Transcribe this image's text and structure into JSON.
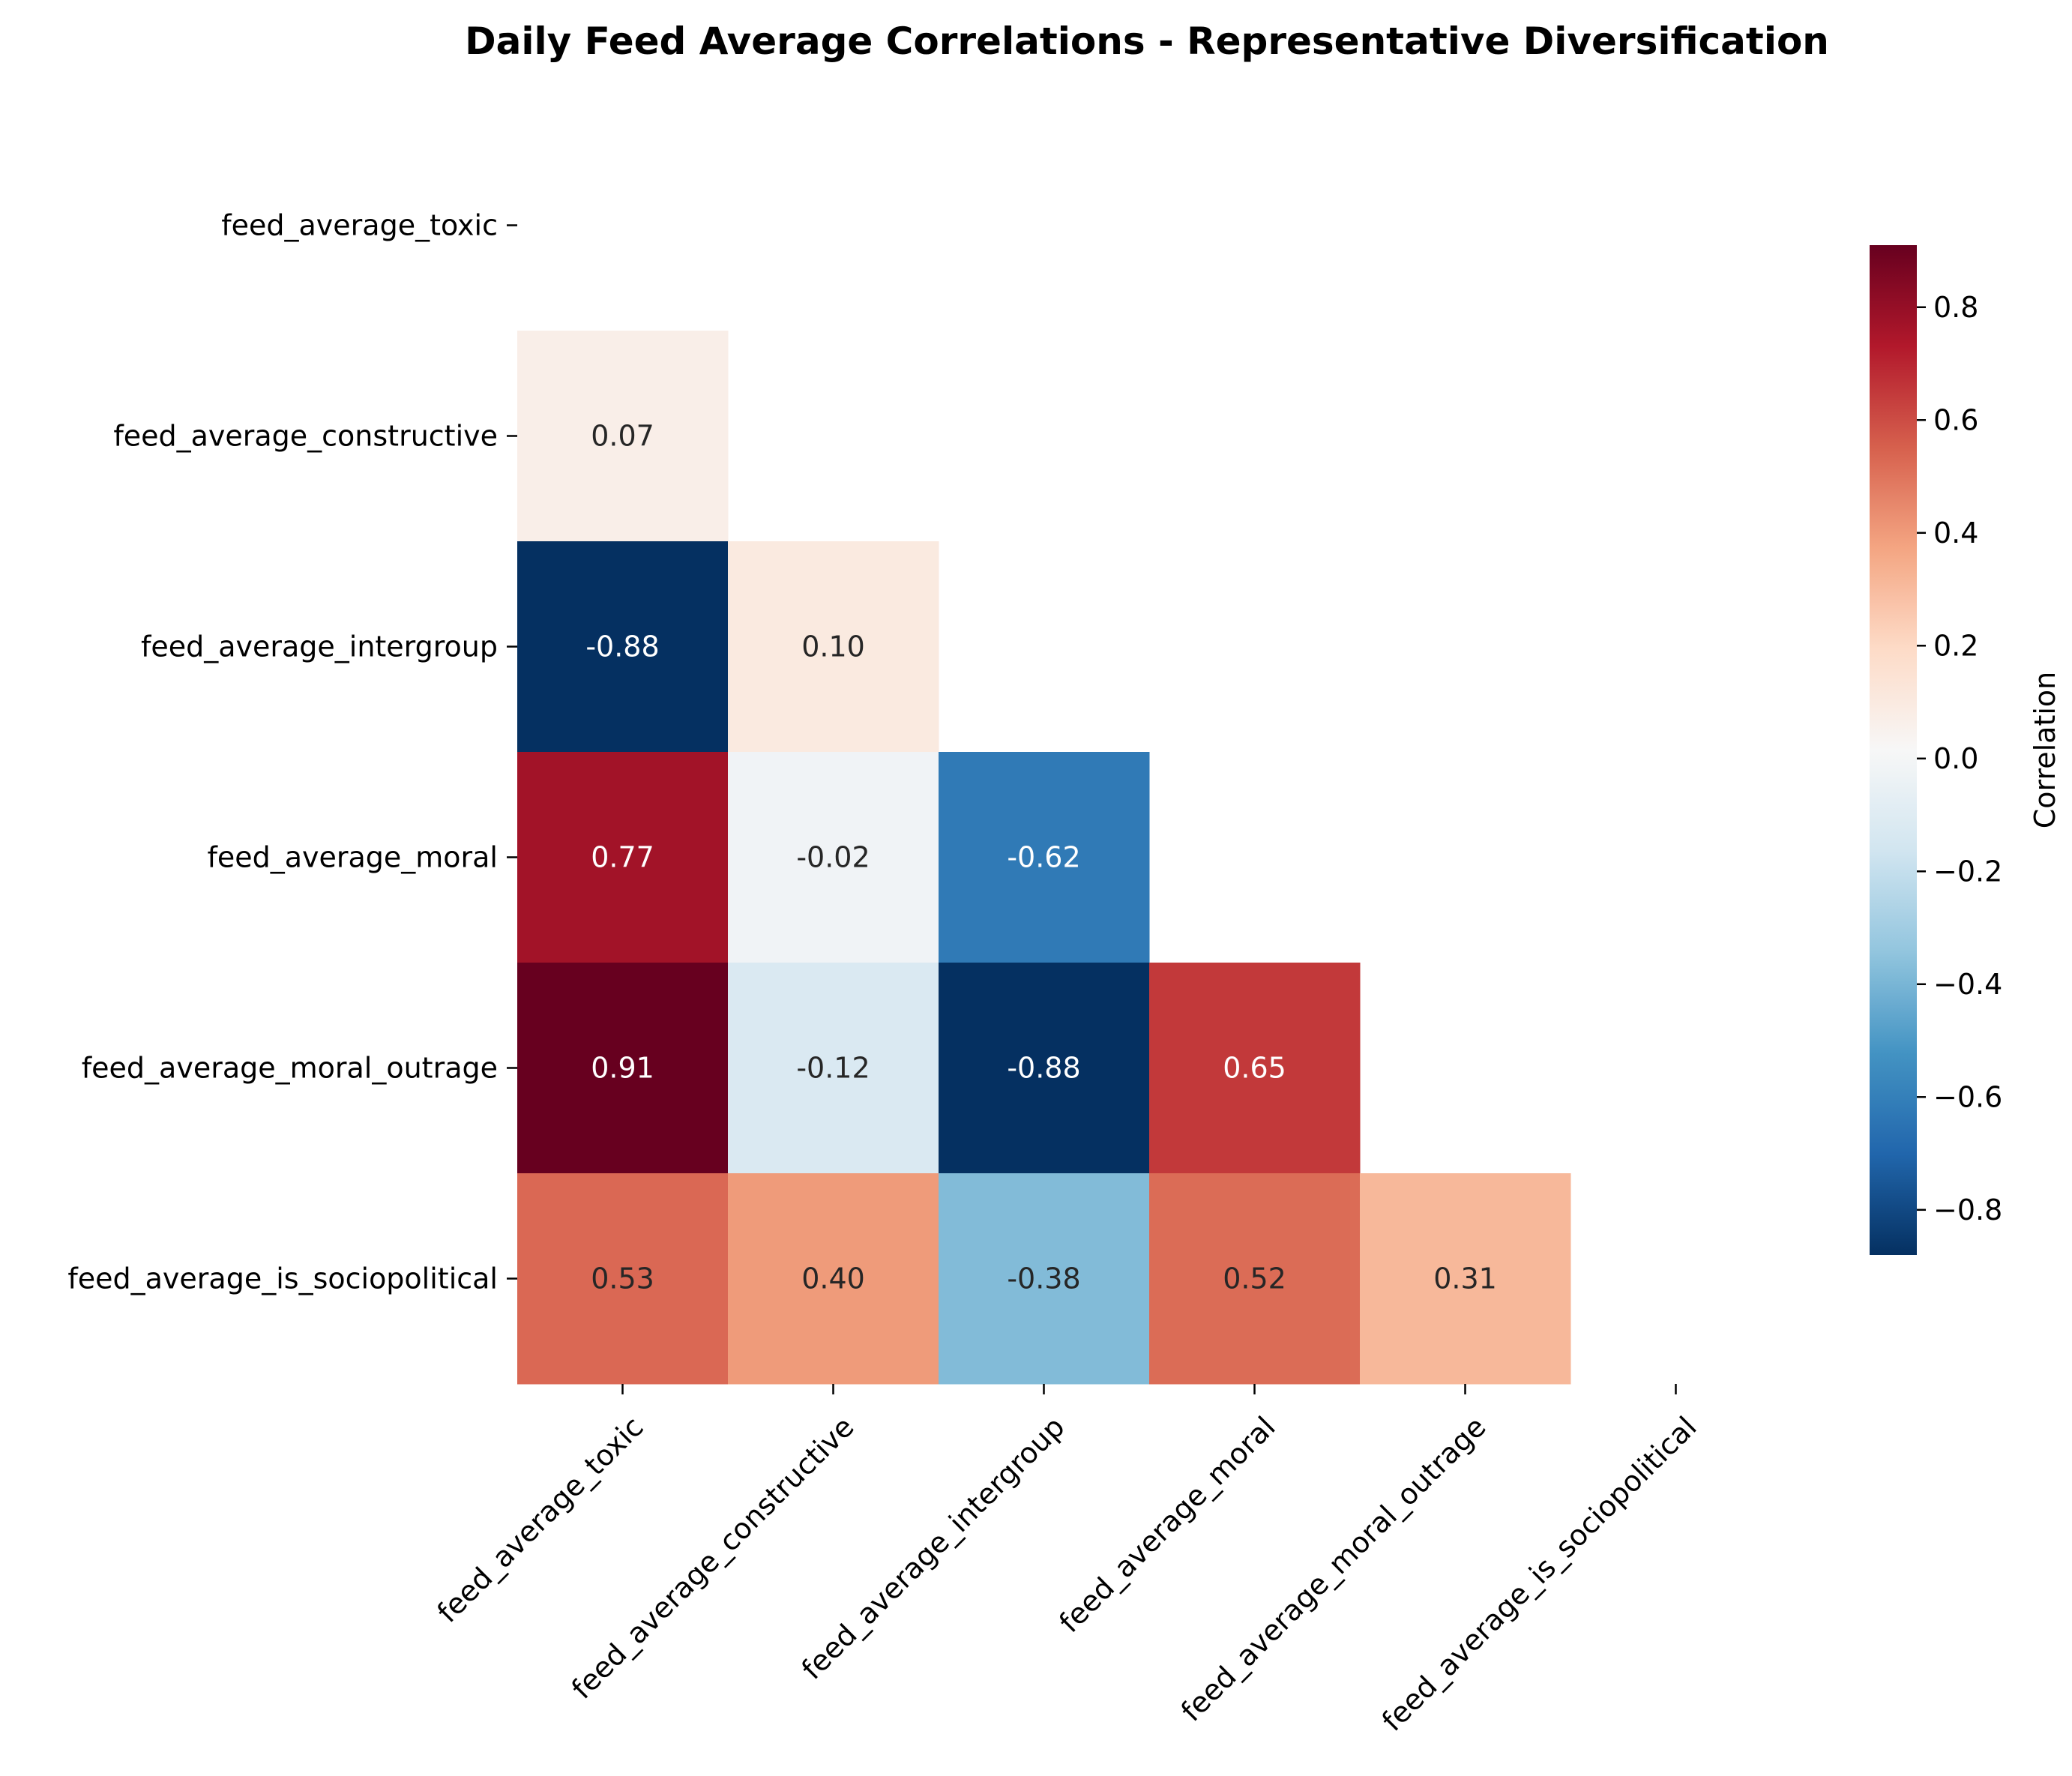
{
  "chart_data": {
    "type": "heatmap",
    "title": "Daily Feed Average Correlations - Representative Diversification",
    "labels": [
      "feed_average_toxic",
      "feed_average_constructive",
      "feed_average_intergroup",
      "feed_average_moral",
      "feed_average_moral_outrage",
      "feed_average_is_sociopolitical"
    ],
    "mask": "upper triangle incl. diagonal",
    "matrix": [
      [
        null,
        null,
        null,
        null,
        null,
        null
      ],
      [
        0.07,
        null,
        null,
        null,
        null,
        null
      ],
      [
        -0.88,
        0.1,
        null,
        null,
        null,
        null
      ],
      [
        0.77,
        -0.02,
        -0.62,
        null,
        null,
        null
      ],
      [
        0.91,
        -0.12,
        -0.88,
        0.65,
        null,
        null
      ],
      [
        0.53,
        0.4,
        -0.38,
        0.52,
        0.31,
        null
      ]
    ],
    "cell_labels": [
      [
        null,
        null,
        null,
        null,
        null,
        null
      ],
      [
        "0.07",
        null,
        null,
        null,
        null,
        null
      ],
      [
        "-0.88",
        "0.10",
        null,
        null,
        null,
        null
      ],
      [
        "0.77",
        "-0.02",
        "-0.62",
        null,
        null,
        null
      ],
      [
        "0.91",
        "-0.12",
        "-0.88",
        "0.65",
        null,
        null
      ],
      [
        "0.53",
        "0.40",
        "-0.38",
        "0.52",
        "0.31",
        null
      ]
    ],
    "colormap": "RdBu_r",
    "vmin": -0.88,
    "vmax": 0.91,
    "colorbar": {
      "label": "Correlation",
      "ticks": [
        -0.8,
        -0.6,
        -0.4,
        -0.2,
        0.0,
        0.2,
        0.4,
        0.6,
        0.8
      ],
      "tick_labels": [
        "−0.8",
        "−0.6",
        "−0.4",
        "−0.2",
        "0.0",
        "0.2",
        "0.4",
        "0.6",
        "0.8"
      ]
    }
  }
}
